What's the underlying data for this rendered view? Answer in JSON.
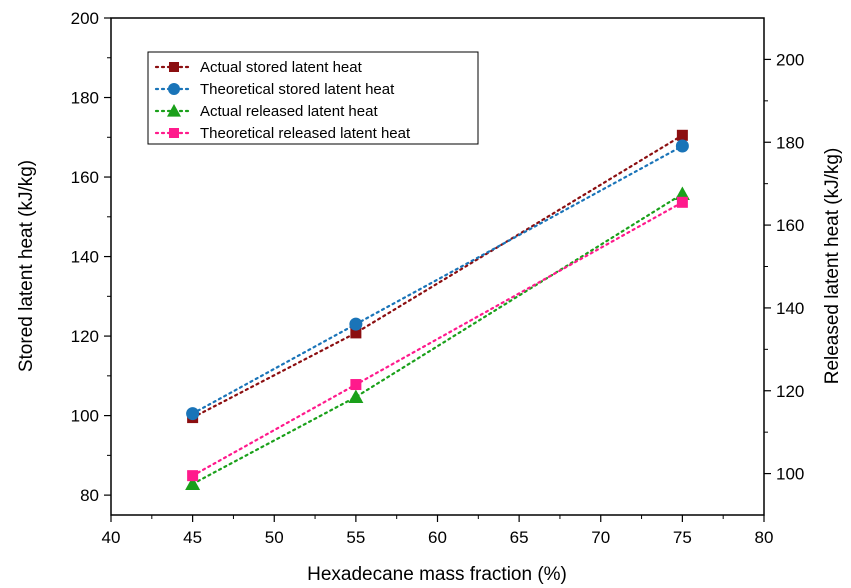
{
  "chart_data": {
    "type": "line",
    "x": [
      45,
      55,
      75
    ],
    "xlabel": "Hexadecane mass fraction (%)",
    "ylabel_left": "Stored latent heat (kJ/kg)",
    "ylabel_right": "Released latent heat (kJ/kg)",
    "xlim": [
      40,
      80
    ],
    "ylim_left": [
      75,
      200
    ],
    "ylim_right": [
      90,
      210
    ],
    "x_ticks": [
      "40",
      "45",
      "50",
      "55",
      "60",
      "65",
      "70",
      "75",
      "80"
    ],
    "y_left_ticks": [
      "80",
      "100",
      "120",
      "140",
      "160",
      "180",
      "200"
    ],
    "y_right_ticks": [
      "100",
      "120",
      "140",
      "160",
      "180",
      "200"
    ],
    "grid": false,
    "legend_position": "top-left",
    "series": [
      {
        "name": "Actual stored latent heat",
        "axis": "left",
        "marker": "square",
        "color": "#8b0e10",
        "values": [
          99.5,
          120.8,
          170.5
        ]
      },
      {
        "name": "Theoretical stored latent heat",
        "axis": "left",
        "marker": "circle",
        "color": "#1a74b8",
        "values": [
          100.5,
          123.0,
          167.8
        ]
      },
      {
        "name": "Actual released latent heat",
        "axis": "right",
        "marker": "triangle",
        "color": "#1aa01a",
        "values": [
          97.5,
          118.5,
          167.5
        ]
      },
      {
        "name": "Theoretical released latent heat",
        "axis": "right",
        "marker": "square",
        "color": "#ff1a8c",
        "values": [
          99.5,
          121.5,
          165.5
        ]
      }
    ]
  }
}
